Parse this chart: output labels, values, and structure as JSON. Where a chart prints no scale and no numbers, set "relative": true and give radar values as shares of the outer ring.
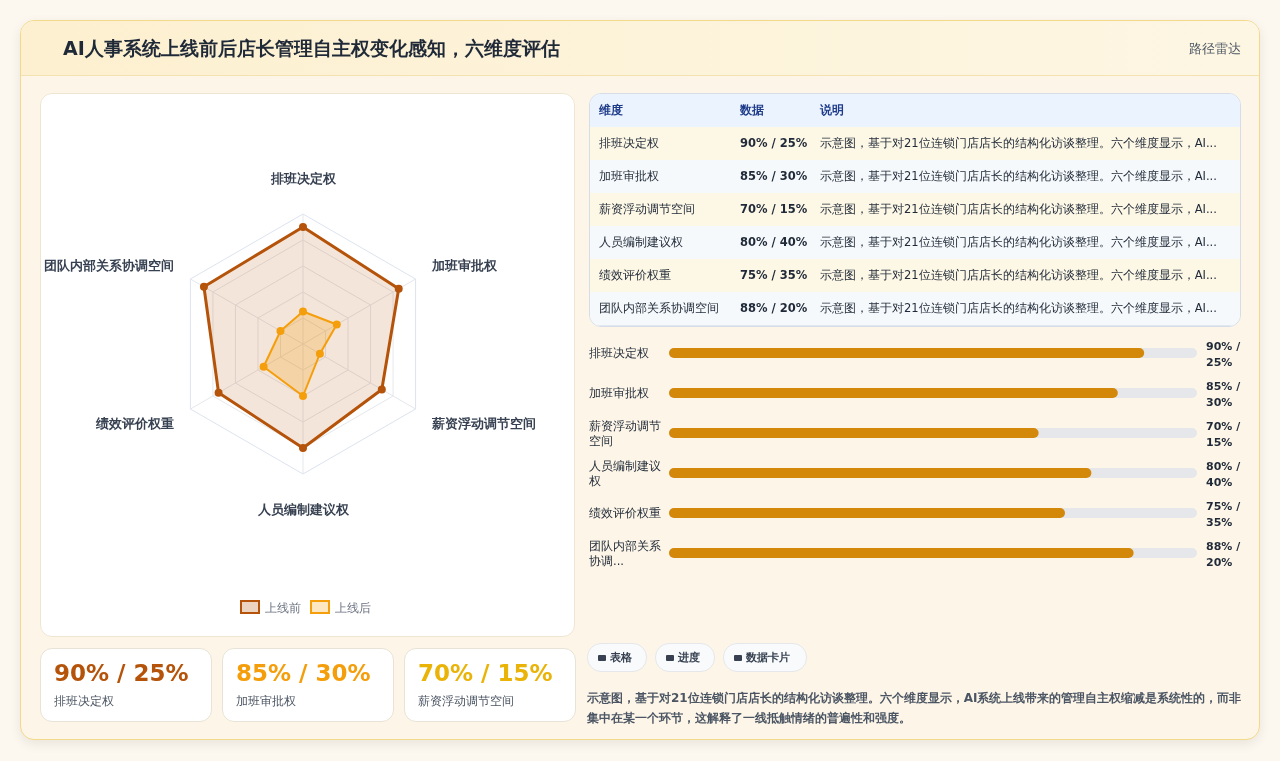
{
  "chart_data": [
    {
      "type": "other",
      "title": "AI人事系统上线前后店长管理自主权变化感知，六维度评估",
      "subtitle": "路径雷达"
    },
    {
      "type": "radar",
      "categories": [
        "排班决定权",
        "加班审批权",
        "薪资浮动调节空间",
        "人员编制建议权",
        "绩效评价权重",
        "团队内部关系协调空间"
      ],
      "relative": true,
      "legend": "bottom",
      "marker": "circle",
      "series": [
        {
          "name": "上线前",
          "color": "#b45309",
          "values": [
            0.9,
            0.85,
            0.7,
            0.8,
            0.75,
            0.88
          ]
        },
        {
          "name": "上线后",
          "color": "#f59e0b",
          "values": [
            0.25,
            0.3,
            0.15,
            0.4,
            0.35,
            0.2
          ]
        }
      ]
    },
    {
      "type": "other",
      "annotations": [
        "维度",
        "数据",
        "说明",
        "排班决定权",
        "90% / 25%",
        "示意图，基于对21位连锁门店店长的结构化访谈整理。六个维度显示，AI...",
        "加班审批权",
        "85% / 30%",
        "示意图，基于对21位连锁门店店长的结构化访谈整理。六个维度显示，AI...",
        "薪资浮动调节空间",
        "70% / 15%",
        "示意图，基于对21位连锁门店店长的结构化访谈整理。六个维度显示，AI...",
        "人员编制建议权",
        "80% / 40%",
        "示意图，基于对21位连锁门店店长的结构化访谈整理。六个维度显示，AI...",
        "绩效评价权重",
        "75% / 35%",
        "示意图，基于对21位连锁门店店长的结构化访谈整理。六个维度显示，AI...",
        "团队内部关系协调空间",
        "88% / 20%",
        "示意图，基于对21位连锁门店店长的结构化访谈整理。六个维度显示，AI..."
      ]
    },
    {
      "type": "bar",
      "orientation": "horizontal",
      "categories": [
        "排班决定权",
        "加班审批权",
        "薪资浮动调节空间",
        "人员编制建议权",
        "绩效评价权重",
        "团队内部关系协调..."
      ],
      "values": [
        90,
        85,
        70,
        80,
        75,
        88
      ],
      "color": "#d4880a",
      "xlim": [
        0,
        100
      ],
      "tick_labels": false,
      "value_labels": [
        "90% / 25%",
        "85% / 30%",
        "70% / 15%",
        "80% / 40%",
        "75% / 35%",
        "88% / 20%"
      ]
    },
    {
      "type": "other",
      "annotations": [
        "90% / 25%",
        "排班决定权",
        "85% / 30%",
        "加班审批权",
        "70% / 15%",
        "薪资浮动调节空间"
      ],
      "colors": [
        "#b45309",
        "#f59e0b",
        "#eab308"
      ]
    },
    {
      "type": "other",
      "annotations": [
        "表格",
        "进度",
        "数据卡片",
        "示意图，基于对21位连锁门店店长的结构化访谈整理。六个维度显示，AI系统上线带来的管理自主权缩减是系统性的，而非集中在某一个环节，这解释了一线抵触情绪的普遍性和强度。"
      ]
    }
  ]
}
